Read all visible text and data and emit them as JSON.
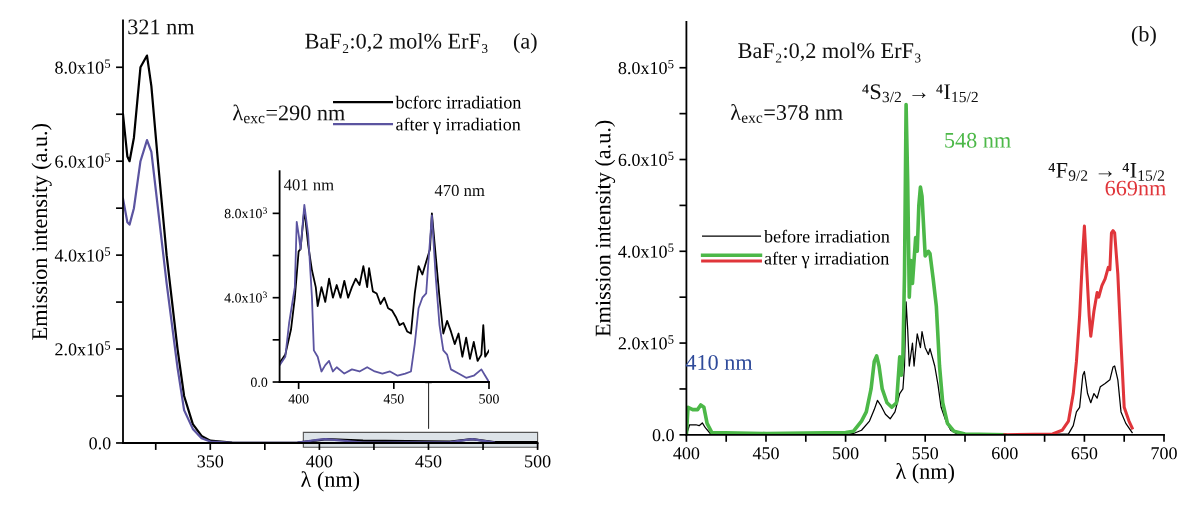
{
  "chart_data": [
    {
      "type": "line",
      "xlabel": "λ (nm)",
      "ylabel": "Emission intensity (a.u.)",
      "legend": "top right",
      "xlim": [
        310,
        500
      ],
      "ylim": [
        0,
        900000
      ],
      "xticks": [
        {
          "value": 325,
          "label": null
        },
        350,
        {
          "value": 375,
          "label": null
        },
        400,
        {
          "value": 425,
          "label": null
        },
        450,
        {
          "value": 475,
          "label": null
        },
        500
      ],
      "yticks": [
        {
          "value": 0,
          "label": "0.0"
        },
        {
          "value": 100000,
          "label": null
        },
        {
          "value": 200000,
          "label": "2.0x10$^{5}$"
        },
        {
          "value": 300000,
          "label": null
        },
        {
          "value": 400000,
          "label": "4.0x10$^{5}$"
        },
        {
          "value": 500000,
          "label": null
        },
        {
          "value": 600000,
          "label": "6.0x10$^{5}$"
        },
        {
          "value": 700000,
          "label": null
        },
        {
          "value": 800000,
          "label": "8.0x10$^{5}$"
        }
      ],
      "annotations": [
        {
          "text": "321 nm",
          "x": 321,
          "y": 825000
        },
        "BaF₂:0,2 mol% ErF₃",
        "(a)",
        "λ$_{exc}$=290 nm"
      ],
      "series": [
        {
          "name": "bcforc irradiation",
          "color": "#000000",
          "x": [
            310,
            312,
            313,
            315,
            318,
            321,
            323,
            326,
            330,
            335,
            338,
            342,
            346,
            350,
            355,
            360,
            370,
            390,
            400,
            403,
            420,
            440,
            460,
            470,
            480,
            500
          ],
          "values": [
            700000,
            610000,
            600000,
            650000,
            800000,
            825000,
            760000,
            600000,
            400000,
            200000,
            100000,
            40000,
            15000,
            5000,
            3000,
            1000,
            0,
            1000,
            6000,
            8000,
            5000,
            4000,
            3000,
            8000,
            2000,
            2000
          ]
        },
        {
          "name": "after γ irradiation",
          "color": "#5b54a0",
          "x": [
            310,
            312,
            313,
            315,
            318,
            321,
            323,
            326,
            330,
            335,
            338,
            342,
            346,
            350,
            355,
            360,
            370,
            390,
            400,
            403,
            420,
            460,
            470,
            480
          ],
          "values": [
            520000,
            470000,
            465000,
            500000,
            600000,
            645000,
            620000,
            500000,
            340000,
            160000,
            70000,
            30000,
            10000,
            3000,
            2000,
            0,
            0,
            1000,
            7000,
            8000,
            1000,
            2000,
            8000,
            1000
          ]
        }
      ]
    },
    {
      "type": "line",
      "xlim": [
        390,
        500
      ],
      "ylim": [
        0,
        10000
      ],
      "xticks": [
        400,
        450,
        500
      ],
      "yticks": [
        {
          "value": 0,
          "label": "0.0"
        },
        {
          "value": 2000,
          "label": null
        },
        {
          "value": 4000,
          "label": "4.0x10$^{3}$"
        },
        {
          "value": 6000,
          "label": null
        },
        {
          "value": 8000,
          "label": "8.0x10$^{3}$"
        }
      ],
      "annotations": [
        {
          "text": "401 nm",
          "x": 401,
          "y": 8400
        },
        {
          "text": "470 nm",
          "x": 470,
          "y": 8000
        }
      ],
      "series": [
        {
          "color": "#000000",
          "x": [
            390,
            393,
            396,
            398,
            400,
            401,
            403,
            405,
            407,
            409,
            410,
            412,
            414,
            416,
            418,
            420,
            422,
            424,
            426,
            428,
            430,
            432,
            434,
            436,
            437,
            439,
            441,
            443,
            445,
            447,
            449,
            451,
            453,
            455,
            457,
            459,
            461,
            463,
            465,
            467,
            469,
            470,
            472,
            474,
            476,
            478,
            480,
            482,
            484,
            486,
            488,
            490,
            492,
            494,
            496,
            497,
            498,
            500
          ],
          "values": [
            900,
            1300,
            2500,
            4000,
            6200,
            6300,
            8200,
            6500,
            5300,
            4500,
            3600,
            4500,
            3800,
            4900,
            4000,
            4600,
            4000,
            4800,
            4000,
            4500,
            4900,
            4600,
            5500,
            4500,
            5400,
            4300,
            4200,
            3700,
            4000,
            3500,
            3400,
            3100,
            2700,
            2800,
            2400,
            2300,
            4200,
            5500,
            5100,
            5700,
            6300,
            8000,
            6000,
            4000,
            2300,
            2900,
            2400,
            1800,
            2300,
            1200,
            2100,
            1100,
            1900,
            1000,
            1300,
            2700,
            1200,
            1500
          ]
        },
        {
          "color": "#5b54a0",
          "x": [
            390,
            393,
            395,
            398,
            399,
            400,
            401,
            403,
            405,
            407,
            408,
            410,
            412,
            414,
            416,
            418,
            420,
            424,
            428,
            432,
            436,
            440,
            444,
            448,
            452,
            456,
            459,
            461,
            463,
            465,
            467,
            468,
            470,
            472,
            474,
            476,
            478,
            480,
            484,
            488,
            492,
            496,
            498,
            500
          ],
          "values": [
            800,
            1200,
            2800,
            4500,
            7600,
            7000,
            6300,
            8400,
            7000,
            4000,
            1500,
            1200,
            500,
            800,
            1000,
            500,
            700,
            400,
            600,
            500,
            700,
            500,
            400,
            500,
            300,
            400,
            500,
            1800,
            3500,
            4000,
            4200,
            5500,
            7900,
            5000,
            2700,
            1500,
            1300,
            600,
            400,
            200,
            300,
            600,
            300,
            0
          ]
        }
      ]
    },
    {
      "type": "line",
      "xlabel": "λ (nm)",
      "ylabel": "Emission intensity (a.u.)",
      "legend": "center left",
      "xlim": [
        400,
        700
      ],
      "ylim": [
        0,
        900000
      ],
      "xticks": [
        400,
        {
          "value": 425,
          "label": null
        },
        450,
        {
          "value": 475,
          "label": null
        },
        500,
        {
          "value": 525,
          "label": null
        },
        550,
        {
          "value": 575,
          "label": null
        },
        600,
        {
          "value": 625,
          "label": null
        },
        650,
        {
          "value": 675,
          "label": null
        },
        700
      ],
      "yticks": [
        {
          "value": 0,
          "label": "0.0"
        },
        {
          "value": 100000,
          "label": null
        },
        {
          "value": 200000,
          "label": "2.0x10$^{5}$"
        },
        {
          "value": 300000,
          "label": null
        },
        {
          "value": 400000,
          "label": "4.0x10$^{5}$"
        },
        {
          "value": 500000,
          "label": null
        },
        {
          "value": 600000,
          "label": "6.0x10$^{5}$"
        },
        {
          "value": 700000,
          "label": null
        },
        {
          "value": 800000,
          "label": "8.0x10$^{5}$"
        }
      ],
      "annotations": [
        "BaF₂:0,2 mol% ErF₃",
        "(b)",
        "λ$_{exc}$=378 nm",
        "⁴S$_{3/2}$ → ⁴I$_{15/2}$",
        "⁴F$_{9/2}$ → ⁴I$_{15/2}$",
        {
          "text": "410 nm",
          "x": 410,
          "y": 65000
        },
        {
          "text": "548 nm",
          "x": 548,
          "y": 540000
        },
        {
          "text": "669nm",
          "x": 669,
          "y": 445000
        }
      ],
      "series": [
        {
          "name": "before irradiation",
          "color": "#000000",
          "x": [
            400,
            402,
            406,
            408,
            410,
            412,
            415,
            450,
            500,
            505,
            510,
            515,
            518,
            520,
            522,
            525,
            528,
            531,
            534,
            536,
            537,
            538,
            539,
            540,
            542,
            543,
            545,
            547,
            548,
            550,
            552,
            553,
            556,
            558,
            560,
            563,
            566,
            570,
            580,
            600,
            640,
            643,
            645,
            647,
            649,
            650,
            652,
            654,
            656,
            658,
            660,
            663,
            666,
            668,
            669,
            671,
            673,
            676,
            680
          ],
          "values": [
            0,
            22000,
            22000,
            20000,
            26000,
            15000,
            3000,
            2000,
            0,
            3000,
            10000,
            30000,
            55000,
            75000,
            65000,
            45000,
            35000,
            50000,
            90000,
            100000,
            150000,
            290000,
            230000,
            150000,
            200000,
            150000,
            220000,
            190000,
            225000,
            190000,
            175000,
            188000,
            150000,
            110000,
            60000,
            30000,
            10000,
            2000,
            0,
            0,
            2000,
            20000,
            50000,
            60000,
            130000,
            138000,
            90000,
            70000,
            90000,
            80000,
            105000,
            112000,
            120000,
            148000,
            150000,
            120000,
            50000,
            25000,
            5000
          ]
        },
        {
          "name": "after γ irradiation",
          "color": "#4cb848",
          "x": [
            400,
            401,
            404,
            407,
            409,
            411,
            413,
            416,
            450,
            500,
            505,
            510,
            513,
            516,
            518,
            519.5,
            521,
            523,
            526,
            529,
            532,
            534,
            535,
            536,
            537,
            538,
            539,
            540,
            541,
            542,
            544,
            545,
            546,
            547,
            548,
            550,
            552,
            553,
            555,
            557,
            559,
            561,
            564,
            568,
            575,
            600
          ],
          "values": [
            0,
            60000,
            55000,
            55000,
            65000,
            60000,
            25000,
            5000,
            3000,
            5000,
            8000,
            30000,
            50000,
            100000,
            160000,
            172000,
            150000,
            100000,
            70000,
            60000,
            70000,
            170000,
            130000,
            170000,
            350000,
            720000,
            550000,
            300000,
            380000,
            330000,
            430000,
            400000,
            500000,
            540000,
            520000,
            390000,
            400000,
            395000,
            340000,
            280000,
            150000,
            70000,
            25000,
            8000,
            2000,
            0
          ]
        },
        {
          "color": "#e0353a",
          "x": [
            600,
            630,
            636,
            640,
            643,
            645,
            647,
            649,
            650,
            651,
            653,
            654,
            656,
            658,
            659,
            661,
            663,
            665,
            666,
            667,
            668,
            669,
            671,
            673,
            675,
            678,
            680
          ],
          "values": [
            0,
            2000,
            10000,
            30000,
            90000,
            160000,
            260000,
            400000,
            455000,
            390000,
            260000,
            215000,
            270000,
            310000,
            300000,
            325000,
            340000,
            365000,
            360000,
            440000,
            445000,
            440000,
            350000,
            200000,
            60000,
            30000,
            15000
          ]
        }
      ]
    }
  ]
}
